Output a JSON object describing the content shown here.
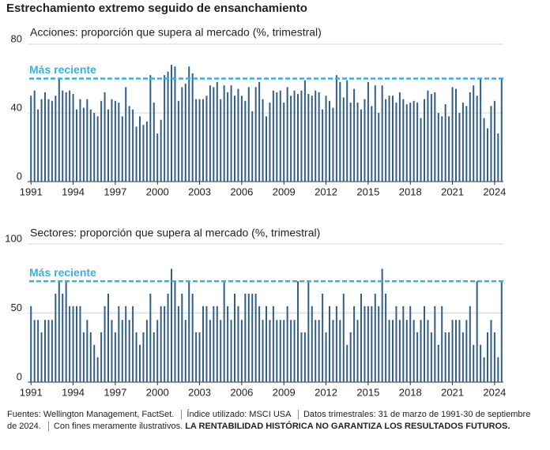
{
  "title": "Estrechamiento extremo seguido de ensanchamiento",
  "footnote": {
    "parts": [
      "Fuentes: Wellington Management, FactSet.",
      "Índice utilizado: MSCI USA",
      "Datos trimestrales: 31 de marzo de 1991-30 de septiembre de 2024.",
      "Con fines meramente ilustrativos."
    ],
    "emphasis": "LA RENTABILIDAD HISTÓRICA NO GARANTIZA LOS RESULTADOS FUTUROS."
  },
  "chart_data": [
    {
      "type": "bar",
      "subtitle": "Acciones: proporción que supera al mercado (%, trimestral)",
      "color": "#2f5f8a",
      "categories": [
        "1991",
        null,
        null,
        null,
        null,
        null,
        null,
        null,
        null,
        null,
        null,
        null,
        "1994",
        null,
        null,
        null,
        null,
        null,
        null,
        null,
        null,
        null,
        null,
        null,
        "1997",
        null,
        null,
        null,
        null,
        null,
        null,
        null,
        null,
        null,
        null,
        null,
        "2000",
        null,
        null,
        null,
        null,
        null,
        null,
        null,
        null,
        null,
        null,
        null,
        "2003",
        null,
        null,
        null,
        null,
        null,
        null,
        null,
        null,
        null,
        null,
        null,
        "2006",
        null,
        null,
        null,
        null,
        null,
        null,
        null,
        null,
        null,
        null,
        null,
        "2009",
        null,
        null,
        null,
        null,
        null,
        null,
        null,
        null,
        null,
        null,
        null,
        "2012",
        null,
        null,
        null,
        null,
        null,
        null,
        null,
        null,
        null,
        null,
        null,
        "2015",
        null,
        null,
        null,
        null,
        null,
        null,
        null,
        null,
        null,
        null,
        null,
        "2018",
        null,
        null,
        null,
        null,
        null,
        null,
        null,
        null,
        null,
        null,
        null,
        "2021",
        null,
        null,
        null,
        null,
        null,
        null,
        null,
        null,
        null,
        null,
        null,
        "2024",
        null,
        null
      ],
      "values": [
        50,
        53,
        42,
        48,
        52,
        48,
        47,
        50,
        60,
        53,
        52,
        53,
        51,
        42,
        48,
        43,
        48,
        42,
        40,
        38,
        47,
        52,
        42,
        48,
        47,
        46,
        38,
        55,
        44,
        42,
        32,
        38,
        33,
        35,
        62,
        46,
        28,
        36,
        62,
        64,
        68,
        67,
        47,
        55,
        57,
        67,
        63,
        48,
        48,
        48,
        50,
        56,
        55,
        58,
        48,
        56,
        52,
        56,
        50,
        54,
        50,
        47,
        55,
        41,
        55,
        58,
        48,
        38,
        46,
        53,
        52,
        53,
        46,
        55,
        50,
        53,
        51,
        53,
        59,
        51,
        50,
        53,
        52,
        42,
        50,
        47,
        43,
        62,
        58,
        49,
        59,
        46,
        54,
        46,
        42,
        48,
        58,
        44,
        56,
        40,
        56,
        48,
        50,
        50,
        46,
        52,
        48,
        45,
        46,
        47,
        46,
        37,
        48,
        53,
        51,
        52,
        40,
        38,
        45,
        38,
        55,
        54,
        40,
        46,
        44,
        52,
        56,
        50,
        60,
        37,
        31,
        44,
        47,
        28,
        60
      ],
      "ylim": [
        0,
        80
      ],
      "yticks": [
        0,
        40,
        80
      ],
      "reference": {
        "label": "Más reciente",
        "value": 60,
        "color": "#3ab0e0"
      }
    },
    {
      "type": "bar",
      "subtitle": "Sectores: proporción que supera al mercado (%, trimestral)",
      "color": "#2f5f8a",
      "categories": [
        "1991",
        null,
        null,
        null,
        null,
        null,
        null,
        null,
        null,
        null,
        null,
        null,
        "1994",
        null,
        null,
        null,
        null,
        null,
        null,
        null,
        null,
        null,
        null,
        null,
        "1997",
        null,
        null,
        null,
        null,
        null,
        null,
        null,
        null,
        null,
        null,
        null,
        "2000",
        null,
        null,
        null,
        null,
        null,
        null,
        null,
        null,
        null,
        null,
        null,
        "2003",
        null,
        null,
        null,
        null,
        null,
        null,
        null,
        null,
        null,
        null,
        null,
        "2006",
        null,
        null,
        null,
        null,
        null,
        null,
        null,
        null,
        null,
        null,
        null,
        "2009",
        null,
        null,
        null,
        null,
        null,
        null,
        null,
        null,
        null,
        null,
        null,
        "2012",
        null,
        null,
        null,
        null,
        null,
        null,
        null,
        null,
        null,
        null,
        null,
        "2015",
        null,
        null,
        null,
        null,
        null,
        null,
        null,
        null,
        null,
        null,
        null,
        "2018",
        null,
        null,
        null,
        null,
        null,
        null,
        null,
        null,
        null,
        null,
        null,
        "2021",
        null,
        null,
        null,
        null,
        null,
        null,
        null,
        null,
        null,
        null,
        null,
        "2024",
        null,
        null
      ],
      "values": [
        55,
        45,
        45,
        36,
        45,
        45,
        45,
        64,
        73,
        64,
        73,
        55,
        55,
        55,
        55,
        36,
        45,
        36,
        27,
        18,
        36,
        55,
        64,
        45,
        36,
        55,
        45,
        55,
        45,
        55,
        36,
        27,
        36,
        45,
        64,
        36,
        45,
        55,
        55,
        64,
        82,
        73,
        55,
        64,
        45,
        73,
        64,
        36,
        36,
        55,
        55,
        45,
        55,
        55,
        45,
        73,
        55,
        45,
        64,
        55,
        45,
        64,
        64,
        64,
        64,
        55,
        45,
        55,
        45,
        55,
        45,
        45,
        45,
        55,
        45,
        45,
        73,
        36,
        36,
        73,
        55,
        45,
        45,
        64,
        36,
        55,
        45,
        55,
        45,
        64,
        27,
        36,
        55,
        45,
        64,
        55,
        55,
        55,
        64,
        55,
        82,
        64,
        45,
        45,
        55,
        45,
        55,
        45,
        55,
        45,
        36,
        45,
        55,
        45,
        36,
        55,
        27,
        55,
        36,
        36,
        45,
        45,
        45,
        36,
        45,
        55,
        27,
        73,
        27,
        18,
        36,
        45,
        36,
        18,
        73
      ],
      "ylim": [
        0,
        100
      ],
      "yticks": [
        0,
        50,
        100
      ],
      "reference": {
        "label": "Más reciente",
        "value": 73,
        "color": "#3ab0e0"
      }
    }
  ]
}
